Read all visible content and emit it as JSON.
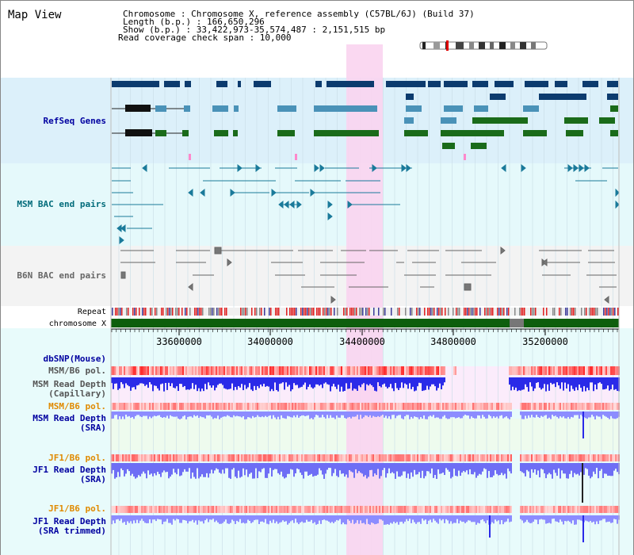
{
  "title": "Map View",
  "header": {
    "line1": "Chromosome    : Chromosome X, reference assembly (C57BL/6J) (Build 37)",
    "line2": "Length (b.p.) : 166,650,296",
    "line3": "Show (b.p.) : 33,422,973-35,574,487 : 2,151,515 bp",
    "line4": "Read coverage check span : 10,000"
  },
  "tracks": {
    "refseq": "RefSeq Genes",
    "msm_bac": "MSM BAC end pairs",
    "b6n_bac": "B6N BAC end pairs",
    "repeat": "Repeat",
    "chromosome": "chromosome X",
    "dbsnp": "dbSNP(Mouse)",
    "msm_pol_1": "MSM/B6 pol.",
    "msm_depth_cap_1": "MSM Read Depth",
    "msm_depth_cap_2": "(Capillary)",
    "msm_pol_2": "MSM/B6 pol.",
    "msm_depth_sra_1": "MSM Read Depth",
    "msm_depth_sra_2": "(SRA)",
    "jf1_pol_1": "JF1/B6 pol.",
    "jf1_depth_sra_1": "JF1 Read Depth",
    "jf1_depth_sra_2": "(SRA)",
    "jf1_pol_2": "JF1/B6 pol.",
    "jf1_depth_trim_1": "JF1 Read Depth",
    "jf1_depth_trim_2": "(SRA trimmed)"
  },
  "axis": {
    "ticks": [
      "33600000",
      "34000000",
      "34400000",
      "34800000",
      "35200000"
    ]
  },
  "colors": {
    "refseq_dark": "#0c3b6e",
    "refseq_mid": "#4a92b8",
    "refseq_green": "#1a6b1a",
    "msm_bac": "#1a7a9a",
    "b6n_bac": "#666666",
    "highlight": "#f9d4f0",
    "chromosome": "#0d5e0d",
    "pol": "#ee7777",
    "depth": "#2a2ae8",
    "depth_light": "#8888ff",
    "label_blue": "#0000a0",
    "label_teal": "#006b7a",
    "label_orange": "#e08a00"
  }
}
